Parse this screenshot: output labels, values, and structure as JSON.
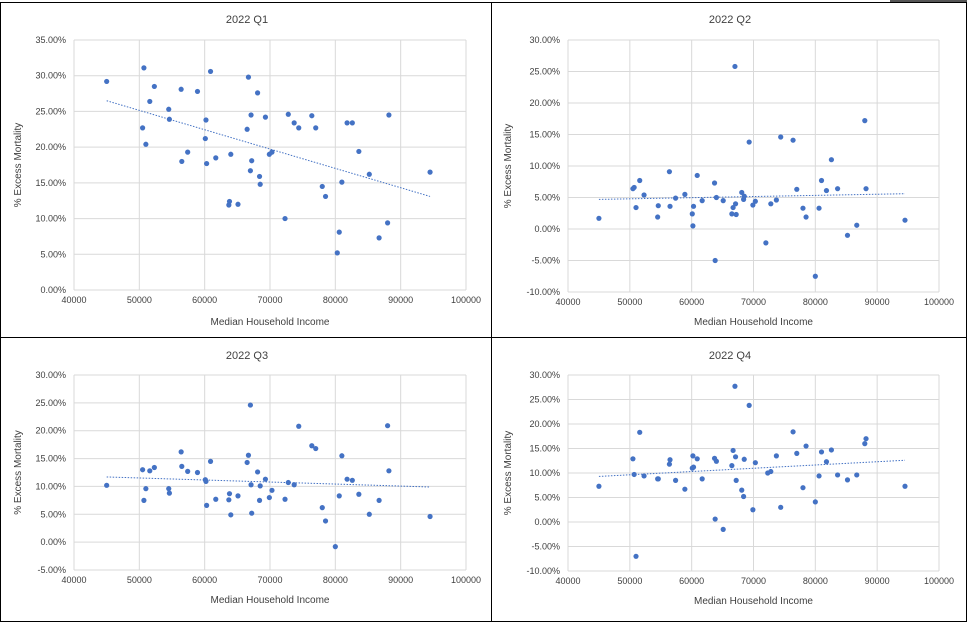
{
  "chart_data": [
    {
      "type": "scatter",
      "title": "2022 Q1",
      "xlabel": "Median Household Income",
      "ylabel": "% Excess Mortality",
      "xlim": [
        40000,
        100000
      ],
      "ylim": [
        0,
        0.35
      ],
      "xticks": [
        40000,
        50000,
        60000,
        70000,
        80000,
        90000,
        100000
      ],
      "yticks": [
        0,
        0.05,
        0.1,
        0.15,
        0.2,
        0.25,
        0.3,
        0.35
      ],
      "xtick_labels": [
        "40000",
        "50000",
        "60000",
        "70000",
        "80000",
        "90000",
        "100000"
      ],
      "ytick_labels": [
        "0.00%",
        "5.00%",
        "10.00%",
        "15.00%",
        "20.00%",
        "25.00%",
        "30.00%",
        "35.00%"
      ],
      "trendline": {
        "x": [
          45000,
          94500
        ],
        "y": [
          0.265,
          0.131
        ]
      },
      "x": [
        45000,
        50500,
        50700,
        51000,
        51600,
        52300,
        54500,
        54600,
        56400,
        56500,
        57400,
        58900,
        60100,
        60200,
        60300,
        60900,
        61700,
        63700,
        63800,
        64000,
        65100,
        66500,
        66700,
        67000,
        67100,
        67200,
        68100,
        68400,
        68500,
        69300,
        69900,
        70300,
        72300,
        72800,
        73700,
        74400,
        76400,
        77000,
        78000,
        78500,
        80300,
        80600,
        81000,
        81800,
        82600,
        83600,
        85200,
        86700,
        88000,
        88200,
        94500
      ],
      "y": [
        0.292,
        0.227,
        0.311,
        0.204,
        0.264,
        0.285,
        0.253,
        0.239,
        0.281,
        0.18,
        0.193,
        0.278,
        0.212,
        0.238,
        0.177,
        0.306,
        0.185,
        0.119,
        0.124,
        0.19,
        0.12,
        0.225,
        0.298,
        0.167,
        0.245,
        0.181,
        0.276,
        0.159,
        0.148,
        0.242,
        0.19,
        0.193,
        0.1,
        0.246,
        0.234,
        0.227,
        0.244,
        0.227,
        0.145,
        0.131,
        0.052,
        0.081,
        0.151,
        0.234,
        0.234,
        0.194,
        0.162,
        0.073,
        0.094,
        0.245,
        0.165
      ]
    },
    {
      "type": "scatter",
      "title": "2022 Q2",
      "xlabel": "Median Household Income",
      "ylabel": "% Excess Mortality",
      "xlim": [
        40000,
        100000
      ],
      "ylim": [
        -0.1,
        0.3
      ],
      "xticks": [
        40000,
        50000,
        60000,
        70000,
        80000,
        90000,
        100000
      ],
      "yticks": [
        -0.1,
        -0.05,
        0,
        0.05,
        0.1,
        0.15,
        0.2,
        0.25,
        0.3
      ],
      "xtick_labels": [
        "40000",
        "50000",
        "60000",
        "70000",
        "80000",
        "90000",
        "100000"
      ],
      "ytick_labels": [
        "-10.00%",
        "-5.00%",
        "0.00%",
        "5.00%",
        "10.00%",
        "15.00%",
        "20.00%",
        "25.00%",
        "30.00%"
      ],
      "trendline": {
        "x": [
          45000,
          94500
        ],
        "y": [
          0.047,
          0.056
        ]
      },
      "x": [
        45000,
        50500,
        50700,
        51000,
        51600,
        52300,
        54500,
        54600,
        56400,
        56500,
        57400,
        58900,
        60100,
        60200,
        60300,
        60900,
        61700,
        63700,
        63800,
        64000,
        65100,
        66500,
        66700,
        67000,
        67100,
        67200,
        68100,
        68400,
        68500,
        69300,
        69900,
        70300,
        72000,
        72800,
        73700,
        74400,
        76400,
        77000,
        78000,
        78500,
        80000,
        80600,
        81000,
        81800,
        82600,
        83600,
        85200,
        86700,
        88000,
        88200,
        94500
      ],
      "y": [
        0.017,
        0.064,
        0.066,
        0.034,
        0.077,
        0.054,
        0.019,
        0.037,
        0.091,
        0.036,
        0.049,
        0.055,
        0.024,
        0.005,
        0.036,
        0.085,
        0.045,
        0.073,
        -0.05,
        0.05,
        0.045,
        0.024,
        0.034,
        0.258,
        0.04,
        0.023,
        0.058,
        0.047,
        0.052,
        0.138,
        0.038,
        0.044,
        -0.022,
        0.04,
        0.046,
        0.146,
        0.141,
        0.063,
        0.033,
        0.019,
        -0.075,
        0.033,
        0.077,
        0.061,
        0.11,
        0.064,
        -0.01,
        0.006,
        0.172,
        0.064,
        0.014
      ]
    },
    {
      "type": "scatter",
      "title": "2022 Q3",
      "xlabel": "Median Household Income",
      "ylabel": "% Excess Mortality",
      "xlim": [
        40000,
        100000
      ],
      "ylim": [
        -0.05,
        0.3
      ],
      "xticks": [
        40000,
        50000,
        60000,
        70000,
        80000,
        90000,
        100000
      ],
      "yticks": [
        -0.05,
        0,
        0.05,
        0.1,
        0.15,
        0.2,
        0.25,
        0.3
      ],
      "xtick_labels": [
        "40000",
        "50000",
        "60000",
        "70000",
        "80000",
        "90000",
        "100000"
      ],
      "ytick_labels": [
        "-5.00%",
        "0.00%",
        "5.00%",
        "10.00%",
        "15.00%",
        "20.00%",
        "25.00%",
        "30.00%"
      ],
      "trendline": {
        "x": [
          45000,
          94500
        ],
        "y": [
          0.117,
          0.099
        ]
      },
      "x": [
        45000,
        50500,
        50700,
        51000,
        51600,
        52300,
        54500,
        54600,
        56400,
        56500,
        57400,
        58900,
        60100,
        60200,
        60300,
        60900,
        61700,
        63700,
        63800,
        64000,
        65100,
        66500,
        66700,
        67000,
        67100,
        67200,
        68100,
        68400,
        68500,
        69300,
        69900,
        70300,
        72300,
        72800,
        73700,
        74400,
        76400,
        77000,
        78000,
        78500,
        80000,
        80600,
        81000,
        81800,
        82600,
        83600,
        85200,
        86700,
        88000,
        88200,
        94500
      ],
      "y": [
        0.102,
        0.13,
        0.075,
        0.096,
        0.128,
        0.134,
        0.096,
        0.088,
        0.162,
        0.136,
        0.127,
        0.125,
        0.112,
        0.109,
        0.066,
        0.145,
        0.077,
        0.076,
        0.087,
        0.049,
        0.083,
        0.143,
        0.156,
        0.246,
        0.103,
        0.052,
        0.126,
        0.075,
        0.101,
        0.113,
        0.08,
        0.093,
        0.077,
        0.107,
        0.103,
        0.208,
        0.173,
        0.168,
        0.062,
        0.038,
        -0.008,
        0.083,
        0.155,
        0.113,
        0.111,
        0.086,
        0.05,
        0.075,
        0.209,
        0.128,
        0.046
      ]
    },
    {
      "type": "scatter",
      "title": "2022 Q4",
      "xlabel": "Median Household Income",
      "ylabel": "% Excess Mortality",
      "xlim": [
        40000,
        100000
      ],
      "ylim": [
        -0.1,
        0.3
      ],
      "xticks": [
        40000,
        50000,
        60000,
        70000,
        80000,
        90000,
        100000
      ],
      "yticks": [
        -0.1,
        -0.05,
        0,
        0.05,
        0.1,
        0.15,
        0.2,
        0.25,
        0.3
      ],
      "xtick_labels": [
        "40000",
        "50000",
        "60000",
        "70000",
        "80000",
        "90000",
        "100000"
      ],
      "ytick_labels": [
        "-10.00%",
        "-5.00%",
        "0.00%",
        "5.00%",
        "10.00%",
        "15.00%",
        "20.00%",
        "25.00%",
        "30.00%"
      ],
      "trendline": {
        "x": [
          45000,
          94500
        ],
        "y": [
          0.093,
          0.126
        ]
      },
      "x": [
        45000,
        50500,
        50700,
        51000,
        51600,
        52300,
        54500,
        54600,
        56400,
        56500,
        57400,
        58900,
        60100,
        60200,
        60300,
        60900,
        61700,
        63700,
        63800,
        64000,
        65100,
        66500,
        66700,
        67000,
        67100,
        67200,
        68100,
        68400,
        68500,
        69300,
        69900,
        70300,
        72300,
        72800,
        73700,
        74400,
        76400,
        77000,
        78000,
        78500,
        80000,
        80600,
        81000,
        81800,
        82600,
        83600,
        85200,
        86700,
        88000,
        88200,
        94500
      ],
      "y": [
        0.073,
        0.129,
        0.097,
        -0.07,
        0.183,
        0.094,
        0.088,
        0.088,
        0.118,
        0.127,
        0.085,
        0.067,
        0.11,
        0.135,
        0.112,
        0.129,
        0.088,
        0.13,
        0.006,
        0.124,
        -0.015,
        0.115,
        0.146,
        0.277,
        0.133,
        0.085,
        0.065,
        0.052,
        0.128,
        0.238,
        0.025,
        0.121,
        0.1,
        0.103,
        0.135,
        0.03,
        0.184,
        0.14,
        0.07,
        0.155,
        0.041,
        0.094,
        0.143,
        0.123,
        0.147,
        0.096,
        0.086,
        0.096,
        0.16,
        0.17,
        0.073
      ]
    }
  ]
}
